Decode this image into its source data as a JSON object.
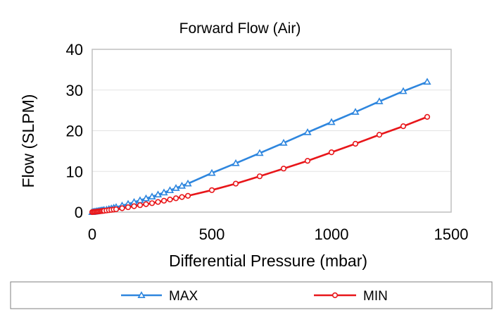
{
  "chart_data": {
    "type": "line",
    "title": "Forward Flow (Air)",
    "xlabel": "Differential Pressure (mbar)",
    "ylabel": "Flow (SLPM)",
    "xlim": [
      0,
      1500
    ],
    "ylim": [
      0,
      40
    ],
    "xticks": [
      "0",
      "500",
      "1000",
      "1500"
    ],
    "yticks": [
      "0",
      "10",
      "20",
      "30",
      "40"
    ],
    "grid": true,
    "legend_position": "bottom",
    "series": [
      {
        "name": "MAX",
        "color": "#2e86de",
        "marker": "triangle",
        "x": [
          0,
          5,
          10,
          15,
          20,
          25,
          30,
          35,
          40,
          45,
          50,
          60,
          70,
          80,
          90,
          100,
          125,
          150,
          175,
          200,
          225,
          250,
          275,
          300,
          325,
          350,
          375,
          400,
          500,
          600,
          700,
          800,
          900,
          1000,
          1100,
          1200,
          1300,
          1400
        ],
        "y": [
          0,
          0.05,
          0.1,
          0.15,
          0.2,
          0.25,
          0.3,
          0.35,
          0.4,
          0.45,
          0.5,
          0.6,
          0.75,
          0.9,
          1.05,
          1.2,
          1.6,
          2.0,
          2.45,
          2.9,
          3.35,
          3.8,
          4.3,
          4.8,
          5.35,
          5.9,
          6.45,
          7.0,
          9.6,
          12.0,
          14.5,
          17.0,
          19.6,
          22.1,
          24.6,
          27.2,
          29.7,
          32.0
        ]
      },
      {
        "name": "MIN",
        "color": "#e8161a",
        "marker": "circle",
        "x": [
          0,
          5,
          10,
          15,
          20,
          25,
          30,
          35,
          40,
          45,
          50,
          60,
          70,
          80,
          90,
          100,
          125,
          150,
          175,
          200,
          225,
          250,
          275,
          300,
          325,
          350,
          375,
          400,
          500,
          600,
          700,
          800,
          900,
          1000,
          1100,
          1200,
          1300,
          1400
        ],
        "y": [
          0,
          0.03,
          0.06,
          0.1,
          0.13,
          0.16,
          0.2,
          0.23,
          0.26,
          0.3,
          0.33,
          0.4,
          0.47,
          0.55,
          0.63,
          0.7,
          0.95,
          1.2,
          1.45,
          1.7,
          1.95,
          2.2,
          2.5,
          2.8,
          3.1,
          3.4,
          3.7,
          4.0,
          5.4,
          7.0,
          8.8,
          10.7,
          12.6,
          14.7,
          16.8,
          19.0,
          21.1,
          23.4
        ]
      }
    ]
  }
}
